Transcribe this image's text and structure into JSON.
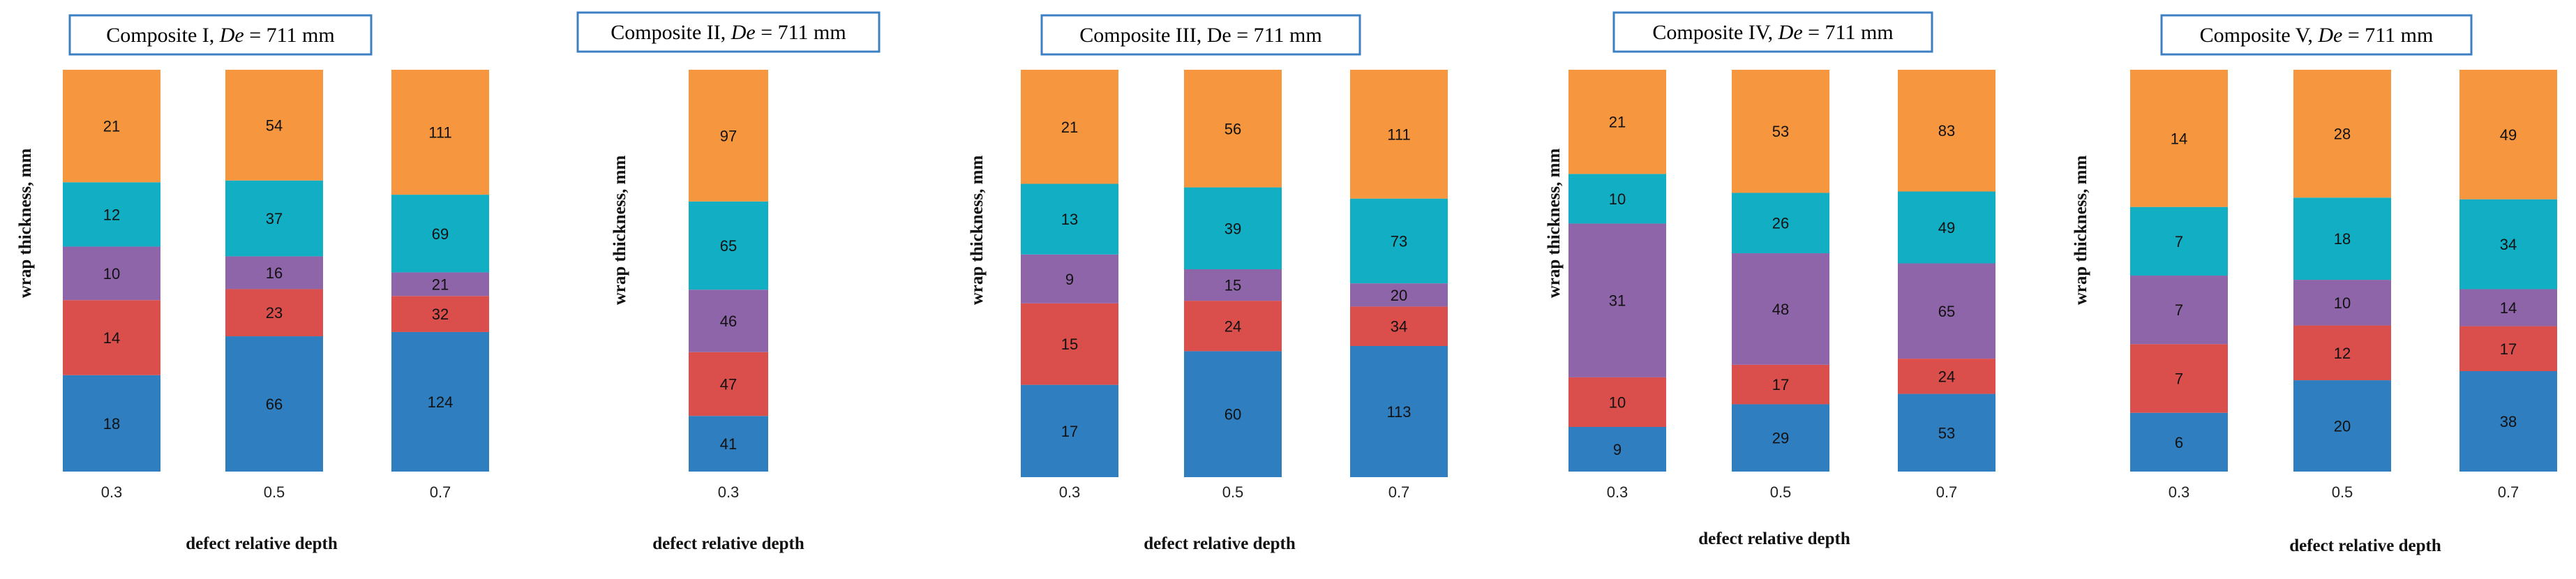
{
  "colors": {
    "layer1": "#2E7EC0",
    "layer2": "#DA4F4C",
    "layer3": "#8E65A8",
    "layer4": "#12AEC4",
    "layer5": "#F6963F",
    "title_border": "#3C7FC2"
  },
  "chart_data": [
    {
      "type": "bar",
      "stacked": true,
      "title": "Composite I, De = 711 mm",
      "title_prefix": "Composite I, ",
      "title_italic": "De",
      "title_suffix": " = 711 mm",
      "xlabel": "defect relative depth",
      "ylabel": "wrap thickness, mm",
      "categories": [
        "0.3",
        "0.5",
        "0.7"
      ],
      "series": [
        {
          "name": "layer1",
          "values": [
            18,
            66,
            124
          ]
        },
        {
          "name": "layer2",
          "values": [
            14,
            23,
            32
          ]
        },
        {
          "name": "layer3",
          "values": [
            10,
            16,
            21
          ]
        },
        {
          "name": "layer4",
          "values": [
            12,
            37,
            69
          ]
        },
        {
          "name": "layer5",
          "values": [
            21,
            54,
            111
          ]
        }
      ]
    },
    {
      "type": "bar",
      "stacked": true,
      "title": "Composite II, De = 711 mm",
      "title_prefix": "Composite II, ",
      "title_italic": "De",
      "title_suffix": " = 711 mm",
      "xlabel": "defect relative depth",
      "ylabel": "wrap thickness, mm",
      "categories": [
        "0.3"
      ],
      "series": [
        {
          "name": "layer1",
          "values": [
            41
          ]
        },
        {
          "name": "layer2",
          "values": [
            47
          ]
        },
        {
          "name": "layer3",
          "values": [
            46
          ]
        },
        {
          "name": "layer4",
          "values": [
            65
          ]
        },
        {
          "name": "layer5",
          "values": [
            97
          ]
        }
      ]
    },
    {
      "type": "bar",
      "stacked": true,
      "title": "Composite III, De = 711 mm",
      "title_prefix": "Composite III, De = 711 mm",
      "title_italic": "",
      "title_suffix": "",
      "xlabel": "defect relative depth",
      "ylabel": "wrap thickness, mm",
      "categories": [
        "0.3",
        "0.5",
        "0.7"
      ],
      "series": [
        {
          "name": "layer1",
          "values": [
            17,
            60,
            113
          ]
        },
        {
          "name": "layer2",
          "values": [
            15,
            24,
            34
          ]
        },
        {
          "name": "layer3",
          "values": [
            9,
            15,
            20
          ]
        },
        {
          "name": "layer4",
          "values": [
            13,
            39,
            73
          ]
        },
        {
          "name": "layer5",
          "values": [
            21,
            56,
            111
          ]
        }
      ]
    },
    {
      "type": "bar",
      "stacked": true,
      "title": "Composite IV, De = 711 mm",
      "title_prefix": "Composite IV, ",
      "title_italic": "De",
      "title_suffix": " = 711 mm",
      "xlabel": "defect relative depth",
      "ylabel": "wrap thickness, mm",
      "categories": [
        "0.3",
        "0.5",
        "0.7"
      ],
      "series": [
        {
          "name": "layer1",
          "values": [
            9,
            29,
            53
          ]
        },
        {
          "name": "layer2",
          "values": [
            10,
            17,
            24
          ]
        },
        {
          "name": "layer3",
          "values": [
            31,
            48,
            65
          ]
        },
        {
          "name": "layer4",
          "values": [
            10,
            26,
            49
          ]
        },
        {
          "name": "layer5",
          "values": [
            21,
            53,
            83
          ]
        }
      ]
    },
    {
      "type": "bar",
      "stacked": true,
      "title": "Composite V, De = 711 mm",
      "title_prefix": "Composite V, ",
      "title_italic": "De",
      "title_suffix": " = 711 mm",
      "xlabel": "defect relative depth",
      "ylabel": "wrap thickness, mm",
      "categories": [
        "0.3",
        "0.5",
        "0.7"
      ],
      "series": [
        {
          "name": "layer1",
          "values": [
            6,
            20,
            38
          ]
        },
        {
          "name": "layer2",
          "values": [
            7,
            12,
            17
          ]
        },
        {
          "name": "layer3",
          "values": [
            7,
            10,
            14
          ]
        },
        {
          "name": "layer4",
          "values": [
            7,
            18,
            34
          ]
        },
        {
          "name": "layer5",
          "values": [
            14,
            28,
            49
          ]
        }
      ]
    }
  ]
}
